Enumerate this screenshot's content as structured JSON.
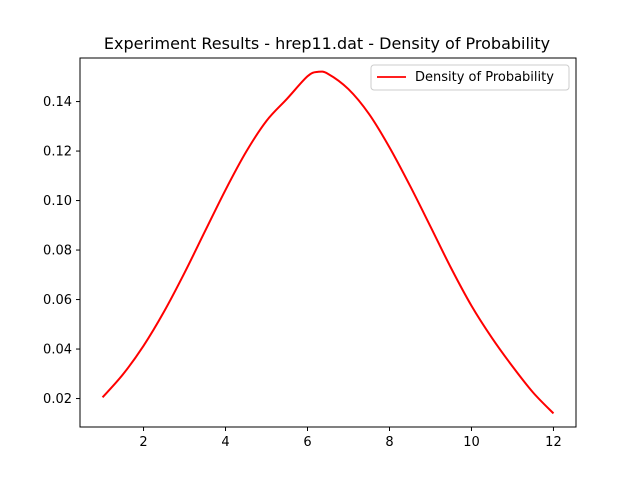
{
  "chart_data": {
    "type": "line",
    "title": "Experiment Results - hrep11.dat - Density of Probability",
    "xlabel": "",
    "ylabel": "",
    "xlim": [
      0.45,
      12.55
    ],
    "ylim": [
      0.0085,
      0.1576
    ],
    "x_ticks": [
      2,
      4,
      6,
      8,
      10,
      12
    ],
    "y_ticks": [
      0.02,
      0.04,
      0.06,
      0.08,
      0.1,
      0.12,
      0.14
    ],
    "x_tick_labels": [
      "2",
      "4",
      "6",
      "8",
      "10",
      "12"
    ],
    "y_tick_labels": [
      "0.02",
      "0.04",
      "0.06",
      "0.08",
      "0.10",
      "0.12",
      "0.14"
    ],
    "grid": false,
    "legend_position": "top-right",
    "series": [
      {
        "name": "Density of Probability",
        "color": "#ff0000",
        "x": [
          1.0,
          1.5,
          2.0,
          2.5,
          3.0,
          3.5,
          4.0,
          4.5,
          5.0,
          5.5,
          6.0,
          6.25,
          6.5,
          7.0,
          7.5,
          8.0,
          8.5,
          9.0,
          9.5,
          10.0,
          10.5,
          11.0,
          11.5,
          12.0
        ],
        "y": [
          0.0205,
          0.0298,
          0.0413,
          0.0551,
          0.0708,
          0.0876,
          0.1043,
          0.1196,
          0.1322,
          0.1411,
          0.1502,
          0.152,
          0.1512,
          0.145,
          0.135,
          0.1215,
          0.106,
          0.0895,
          0.0728,
          0.0575,
          0.0445,
          0.033,
          0.0225,
          0.014
        ]
      }
    ]
  }
}
